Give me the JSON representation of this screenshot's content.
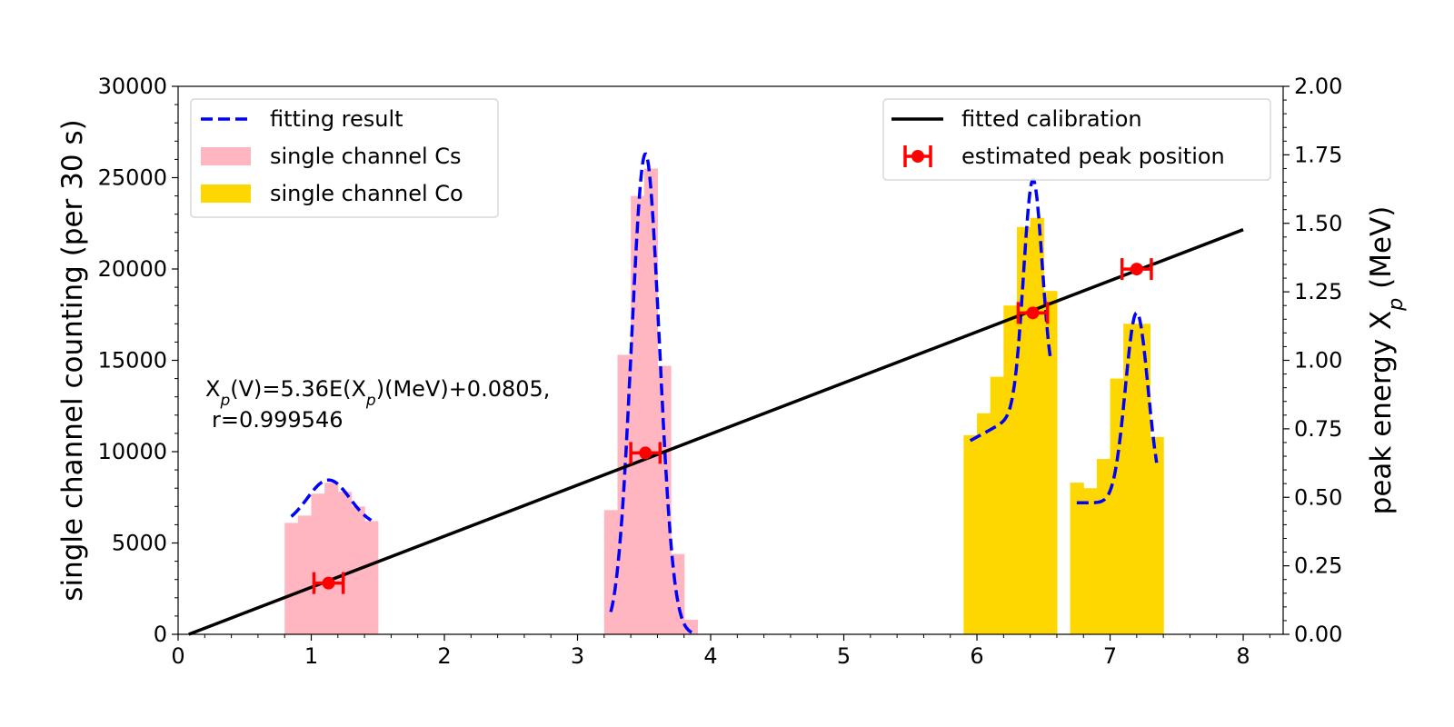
{
  "chart_data": {
    "type": "bar",
    "title": "",
    "xlabel": "",
    "ylabel": "single channel counting (per 30 s)",
    "y2label": "peak energy X_p (MeV)",
    "xlim": [
      0,
      8.3
    ],
    "ylim": [
      0,
      30000
    ],
    "y2lim": [
      0,
      2.0
    ],
    "x_ticks": [
      0,
      1,
      2,
      3,
      4,
      5,
      6,
      7,
      8
    ],
    "y_ticks": [
      0,
      5000,
      10000,
      15000,
      20000,
      25000,
      30000
    ],
    "y2_ticks": [
      "0.00",
      "0.25",
      "0.50",
      "0.75",
      "1.00",
      "1.25",
      "1.50",
      "1.75",
      "2.00"
    ],
    "grid": false,
    "series": [
      {
        "name": "single channel Cs",
        "kind": "bar",
        "color": "#FFB6C1",
        "bin_width": 0.1,
        "bins": [
          {
            "x": 0.85,
            "y": 6100
          },
          {
            "x": 0.95,
            "y": 6500
          },
          {
            "x": 1.05,
            "y": 7700
          },
          {
            "x": 1.15,
            "y": 8300
          },
          {
            "x": 1.25,
            "y": 7800
          },
          {
            "x": 1.35,
            "y": 7000
          },
          {
            "x": 1.45,
            "y": 6200
          },
          {
            "x": 3.25,
            "y": 6800
          },
          {
            "x": 3.35,
            "y": 15300
          },
          {
            "x": 3.45,
            "y": 24000
          },
          {
            "x": 3.55,
            "y": 25500
          },
          {
            "x": 3.65,
            "y": 14700
          },
          {
            "x": 3.75,
            "y": 4400
          },
          {
            "x": 3.85,
            "y": 800
          }
        ]
      },
      {
        "name": "single channel Co",
        "kind": "bar",
        "color": "#FFD700",
        "bin_width": 0.1,
        "bins": [
          {
            "x": 5.95,
            "y": 10900
          },
          {
            "x": 6.05,
            "y": 12100
          },
          {
            "x": 6.15,
            "y": 14100
          },
          {
            "x": 6.25,
            "y": 18000
          },
          {
            "x": 6.35,
            "y": 22300
          },
          {
            "x": 6.45,
            "y": 22800
          },
          {
            "x": 6.55,
            "y": 18800
          },
          {
            "x": 6.75,
            "y": 8300
          },
          {
            "x": 6.85,
            "y": 8000
          },
          {
            "x": 6.95,
            "y": 9600
          },
          {
            "x": 7.05,
            "y": 14000
          },
          {
            "x": 7.15,
            "y": 17000
          },
          {
            "x": 7.25,
            "y": 17000
          },
          {
            "x": 7.35,
            "y": 10800
          }
        ]
      },
      {
        "name": "fitting result",
        "kind": "curve",
        "color": "#0000FF",
        "style": "dashed",
        "segments": [
          {
            "x_range": [
              0.85,
              1.45
            ],
            "baseline": 5900,
            "slope": 0,
            "peaks": [
              {
                "amp": 2550,
                "mu": 1.13,
                "sigma": 0.16
              }
            ]
          },
          {
            "x_range": [
              3.25,
              3.88
            ],
            "baseline": 0,
            "slope": 0,
            "peaks": [
              {
                "amp": 26300,
                "mu": 3.51,
                "sigma": 0.105
              }
            ]
          },
          {
            "x_range": [
              5.95,
              6.55
            ],
            "baseline": 10600,
            "slope": 4000,
            "peaks": [
              {
                "amp": 12400,
                "mu": 6.42,
                "sigma": 0.07
              }
            ]
          },
          {
            "x_range": [
              6.75,
              7.35
            ],
            "baseline": 7200,
            "slope": 0,
            "peaks": [
              {
                "amp": 10400,
                "mu": 7.2,
                "sigma": 0.085
              }
            ]
          }
        ]
      },
      {
        "name": "fitted calibration",
        "kind": "line",
        "color": "#000000",
        "axis": "y2",
        "x": [
          0.0805,
          8.0
        ],
        "y": [
          0.0,
          1.477
        ]
      },
      {
        "name": "estimated peak position",
        "kind": "errorbar",
        "color": "#FF0000",
        "axis": "y2",
        "points": [
          {
            "x": 1.13,
            "y": 0.187,
            "xerr": 0.11
          },
          {
            "x": 3.51,
            "y": 0.662,
            "xerr": 0.11
          },
          {
            "x": 6.42,
            "y": 1.173,
            "xerr": 0.11
          },
          {
            "x": 7.2,
            "y": 1.333,
            "xerr": 0.11
          }
        ]
      }
    ],
    "legend_left": {
      "placement": "top-left",
      "entries": [
        {
          "label": "fitting result",
          "marker": "dashed-line",
          "color": "#0000FF"
        },
        {
          "label": "single channel Cs",
          "marker": "patch",
          "color": "#FFB6C1"
        },
        {
          "label": "single channel Co",
          "marker": "patch",
          "color": "#FFD700"
        }
      ]
    },
    "legend_right": {
      "placement": "top-right",
      "entries": [
        {
          "label": "fitted calibration",
          "marker": "line",
          "color": "#000000"
        },
        {
          "label": "estimated peak position",
          "marker": "errorbar",
          "color": "#FF0000"
        }
      ]
    },
    "annotation": {
      "line1": "X_p(V)=5.36E(X_p)(MeV)+0.0805,",
      "line2": "r=0.999546"
    }
  }
}
